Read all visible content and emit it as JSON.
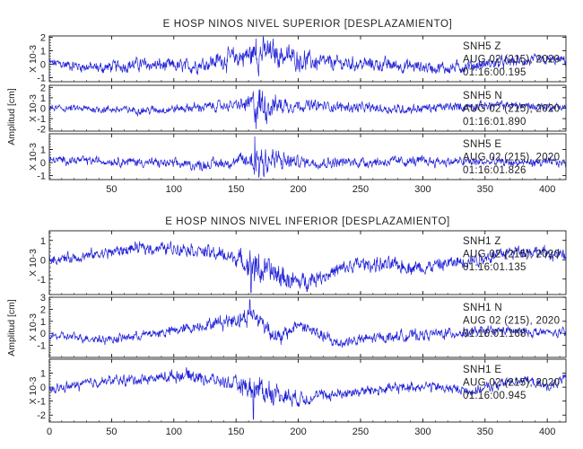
{
  "colors": {
    "trace": "#2020d8",
    "axis": "#000000",
    "text": "#222222"
  },
  "chart_data": [
    {
      "type": "line",
      "title": "E HOSP NINOS NIVEL SUPERIOR [DESPLAZAMIENTO]",
      "ylabel": "Amplitud [cm]",
      "xlim": [
        0,
        415
      ],
      "xticks": [
        50,
        100,
        150,
        200,
        250,
        300,
        350,
        400
      ],
      "xtick_labels": [
        "50",
        "100",
        "150",
        "200",
        "250",
        "300",
        "350",
        "400"
      ],
      "series": [
        {
          "name": "SNH5  Z",
          "ylim": [
            -1.3,
            2.1
          ],
          "yticks": [
            -1,
            0,
            1,
            2
          ],
          "ytick_labels": [
            "-1",
            "0",
            "1",
            "2"
          ],
          "scale_label": "X 10-3",
          "info": [
            "SNH5  Z",
            "AUG 02 (215), 2020",
            "01:16:00.195"
          ],
          "envelope": [
            [
              0,
              0.35
            ],
            [
              60,
              0.45
            ],
            [
              120,
              0.5
            ],
            [
              150,
              0.75
            ],
            [
              160,
              0.9
            ],
            [
              166,
              1.15
            ],
            [
              180,
              0.9
            ],
            [
              230,
              0.5
            ],
            [
              300,
              0.45
            ],
            [
              415,
              0.35
            ]
          ],
          "trend": [
            [
              0,
              0.1
            ],
            [
              40,
              -0.3
            ],
            [
              70,
              0.0
            ],
            [
              110,
              -0.2
            ],
            [
              150,
              0.5
            ],
            [
              175,
              0.9
            ],
            [
              215,
              0.1
            ],
            [
              260,
              0.0
            ],
            [
              320,
              -0.3
            ],
            [
              370,
              0.2
            ],
            [
              415,
              0.3
            ]
          ],
          "spikes": [
            [
              166,
              1.9
            ]
          ]
        },
        {
          "name": "SNH5  N",
          "ylim": [
            -2.2,
            2.2
          ],
          "yticks": [
            -2,
            -1,
            0,
            1,
            2
          ],
          "ytick_labels": [
            "-2",
            "-1",
            "0",
            "1",
            "2"
          ],
          "scale_label": "X 10-3",
          "info": [
            "SNH5  N",
            "AUG 02 (215), 2020",
            "01:16:01.890"
          ],
          "envelope": [
            [
              0,
              0.3
            ],
            [
              150,
              0.45
            ],
            [
              160,
              0.9
            ],
            [
              168,
              1.8
            ],
            [
              180,
              1.0
            ],
            [
              200,
              0.5
            ],
            [
              415,
              0.35
            ]
          ],
          "trend": [
            [
              0,
              0.0
            ],
            [
              80,
              -0.2
            ],
            [
              150,
              0.3
            ],
            [
              200,
              0.3
            ],
            [
              280,
              -0.1
            ],
            [
              360,
              0.3
            ],
            [
              415,
              0.1
            ]
          ],
          "spikes": [
            [
              166,
              -2.0
            ]
          ]
        },
        {
          "name": "SNH5  E",
          "ylim": [
            -1.3,
            2.2
          ],
          "yticks": [
            -1,
            0,
            1
          ],
          "ytick_labels": [
            "-1",
            "0",
            "1"
          ],
          "scale_label": "X 10-3",
          "info": [
            "SNH5  E",
            "AUG 02 (215), 2020",
            "01:16:01.826"
          ],
          "envelope": [
            [
              0,
              0.28
            ],
            [
              150,
              0.4
            ],
            [
              160,
              0.8
            ],
            [
              168,
              1.5
            ],
            [
              182,
              0.9
            ],
            [
              200,
              0.4
            ],
            [
              415,
              0.3
            ]
          ],
          "trend": [
            [
              0,
              0.2
            ],
            [
              60,
              0.1
            ],
            [
              120,
              -0.2
            ],
            [
              165,
              0.2
            ],
            [
              220,
              0.0
            ],
            [
              300,
              0.1
            ],
            [
              380,
              0.0
            ],
            [
              415,
              0.0
            ]
          ],
          "spikes": [
            [
              165,
              2.0
            ]
          ]
        }
      ]
    },
    {
      "type": "line",
      "title": "E HOSP NINOS NIVEL INFERIOR [DESPLAZAMIENTO]",
      "ylabel": "Amplitud [cm]",
      "xlim": [
        0,
        415
      ],
      "xticks": [
        0,
        50,
        100,
        150,
        200,
        250,
        300,
        350,
        400
      ],
      "xtick_labels": [
        "0",
        "50",
        "100",
        "150",
        "200",
        "250",
        "300",
        "350",
        "400"
      ],
      "series": [
        {
          "name": "SNH1  Z",
          "ylim": [
            -1.8,
            1.5
          ],
          "yticks": [
            -1,
            0,
            1
          ],
          "ytick_labels": [
            "-1",
            "0",
            "1"
          ],
          "scale_label": "X 10-3",
          "info": [
            "SNH1  Z",
            "AUG 02 (215), 2020",
            "01:16:01.135"
          ],
          "envelope": [
            [
              0,
              0.25
            ],
            [
              150,
              0.35
            ],
            [
              165,
              0.8
            ],
            [
              200,
              0.4
            ],
            [
              415,
              0.3
            ]
          ],
          "trend": [
            [
              0,
              0.0
            ],
            [
              30,
              0.2
            ],
            [
              70,
              0.6
            ],
            [
              110,
              0.6
            ],
            [
              150,
              0.1
            ],
            [
              170,
              -0.5
            ],
            [
              200,
              -1.2
            ],
            [
              250,
              -0.2
            ],
            [
              300,
              -0.4
            ],
            [
              340,
              0.0
            ],
            [
              380,
              0.5
            ],
            [
              415,
              0.2
            ]
          ],
          "spikes": [
            [
              162,
              -1.7
            ]
          ]
        },
        {
          "name": "SNH1  N",
          "ylim": [
            -2.0,
            3.0
          ],
          "yticks": [
            -1,
            0,
            1,
            2,
            3
          ],
          "ytick_labels": [
            "-1",
            "0",
            "1",
            "2",
            "3"
          ],
          "scale_label": "X 10-3",
          "info": [
            "SNH1  N",
            "AUG 02 (215), 2020",
            "01:16:01.168"
          ],
          "envelope": [
            [
              0,
              0.3
            ],
            [
              130,
              0.45
            ],
            [
              160,
              0.8
            ],
            [
              175,
              0.7
            ],
            [
              200,
              0.5
            ],
            [
              415,
              0.35
            ]
          ],
          "trend": [
            [
              0,
              -0.2
            ],
            [
              50,
              -0.5
            ],
            [
              100,
              0.2
            ],
            [
              140,
              1.0
            ],
            [
              165,
              1.5
            ],
            [
              185,
              -0.5
            ],
            [
              200,
              0.8
            ],
            [
              230,
              -0.8
            ],
            [
              270,
              -0.3
            ],
            [
              320,
              0.0
            ],
            [
              360,
              0.2
            ],
            [
              415,
              0.0
            ]
          ],
          "spikes": [
            [
              161,
              2.8
            ]
          ]
        },
        {
          "name": "SNH1  E",
          "ylim": [
            -2.5,
            2.0
          ],
          "yticks": [
            -2,
            -1,
            0,
            1
          ],
          "ytick_labels": [
            "-2",
            "-1",
            "0",
            "1"
          ],
          "scale_label": "X 10-3",
          "info": [
            "SNH1  E",
            "AUG 02 (215), 2020",
            "01:16:00.945"
          ],
          "envelope": [
            [
              0,
              0.3
            ],
            [
              150,
              0.45
            ],
            [
              165,
              1.0
            ],
            [
              190,
              0.6
            ],
            [
              215,
              0.4
            ],
            [
              415,
              0.3
            ]
          ],
          "trend": [
            [
              0,
              -0.2
            ],
            [
              40,
              0.4
            ],
            [
              80,
              0.6
            ],
            [
              110,
              0.9
            ],
            [
              160,
              0.0
            ],
            [
              200,
              -0.8
            ],
            [
              250,
              -0.3
            ],
            [
              300,
              0.1
            ],
            [
              340,
              -0.3
            ],
            [
              380,
              0.6
            ],
            [
              400,
              0.0
            ],
            [
              415,
              0.6
            ]
          ],
          "spikes": [
            [
              164,
              -2.3
            ]
          ]
        }
      ]
    }
  ]
}
